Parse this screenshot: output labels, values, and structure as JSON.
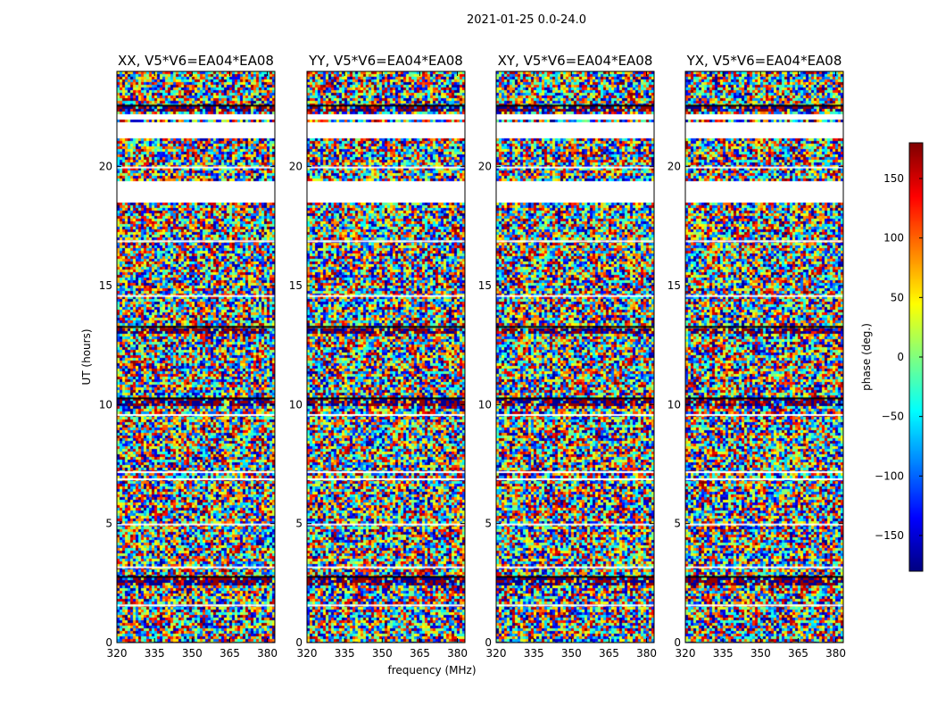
{
  "figure": {
    "suptitle": "2021-01-25 0.0-24.0"
  },
  "chart_data": {
    "type": "heatmap",
    "xlabel": "frequency (MHz)",
    "ylabel": "UT (hours)",
    "xlim": [
      320,
      383
    ],
    "ylim": [
      0,
      24
    ],
    "xticks": [
      320,
      335,
      350,
      365,
      380
    ],
    "yticks": [
      0,
      5,
      10,
      15,
      20
    ],
    "panels": [
      {
        "title": "XX, V5*V6=EA04*EA08"
      },
      {
        "title": "YY, V5*V6=EA04*EA08"
      },
      {
        "title": "XY, V5*V6=EA04*EA08"
      },
      {
        "title": "YX, V5*V6=EA04*EA08"
      }
    ],
    "colorbar": {
      "label": "phase (deg.)",
      "vmin": -180,
      "vmax": 180,
      "ticks": [
        150,
        100,
        50,
        0,
        -50,
        -100,
        -150
      ],
      "tick_labels": [
        "150",
        "100",
        "50",
        "0",
        "−50",
        "−100",
        "−150"
      ],
      "colormap": "jet"
    },
    "blank_bands_hours": [
      [
        18.6,
        19.4
      ],
      [
        21.3,
        21.9
      ],
      [
        22.0,
        22.3
      ]
    ],
    "dark_bands_hours": [
      [
        22.4,
        22.6
      ],
      [
        13.0,
        13.3
      ],
      [
        10.0,
        10.3
      ],
      [
        2.5,
        2.8
      ]
    ],
    "white_lines_hours": [
      1.6,
      3.2,
      5.0,
      6.9,
      7.2,
      9.6,
      14.6,
      16.9,
      20.0
    ]
  }
}
